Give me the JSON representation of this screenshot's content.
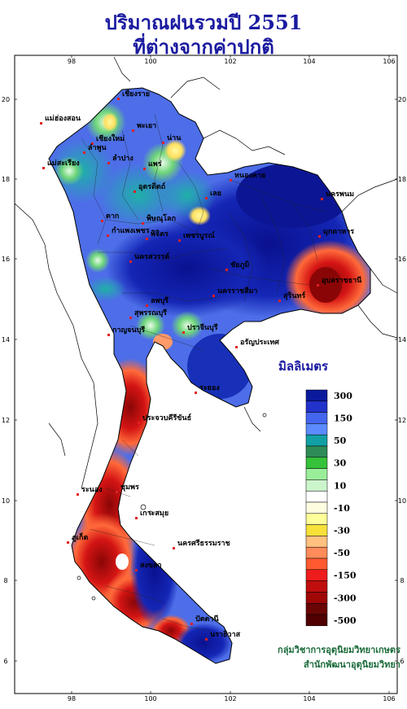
{
  "title": {
    "line1": "ปริมาณฝนรวมปี  2551",
    "line2": "ที่ต่างจากค่าปกติ"
  },
  "axes": {
    "top_ticks": [
      "98",
      "100",
      "102",
      "104",
      "106"
    ],
    "bottom_ticks": [
      "98",
      "100",
      "102",
      "104",
      "106"
    ],
    "left_ticks": [
      "20",
      "18",
      "16",
      "14",
      "12",
      "10",
      "8",
      "6"
    ],
    "right_ticks": [
      "20",
      "18",
      "16",
      "14",
      "12",
      "10",
      "8",
      "6"
    ]
  },
  "cities": [
    {
      "name": "เชียงราย"
    },
    {
      "name": "แม่ฮ่องสอน"
    },
    {
      "name": "พะเยา"
    },
    {
      "name": "เชียงใหม่"
    },
    {
      "name": "ลำพูน"
    },
    {
      "name": "น่าน"
    },
    {
      "name": "ลำปาง"
    },
    {
      "name": "แพร่"
    },
    {
      "name": "แม่สะเรียง"
    },
    {
      "name": "อุตรดิตถ์"
    },
    {
      "name": "หนองคาย"
    },
    {
      "name": "นครพนม"
    },
    {
      "name": "เลย"
    },
    {
      "name": "ตาก"
    },
    {
      "name": "พิษณุโลก"
    },
    {
      "name": "กำแพงเพชร"
    },
    {
      "name": "พิจิตร"
    },
    {
      "name": "เพชรบูรณ์"
    },
    {
      "name": "มุกดาหาร"
    },
    {
      "name": "นครสวรรค์"
    },
    {
      "name": "ชัยภูมิ"
    },
    {
      "name": "อุบลราชธานี"
    },
    {
      "name": "นครราชสีมา"
    },
    {
      "name": "สุรินทร์"
    },
    {
      "name": "ลพบุรี"
    },
    {
      "name": "สุพรรณบุรี"
    },
    {
      "name": "กาญจนบุรี"
    },
    {
      "name": "ปราจีนบุรี"
    },
    {
      "name": "อรัญประเทศ"
    },
    {
      "name": "ระยอง"
    },
    {
      "name": "ประจวบคีรีขันธ์"
    },
    {
      "name": "ชุมพร"
    },
    {
      "name": "ระนอง"
    },
    {
      "name": "เกาะสมุย"
    },
    {
      "name": "ภูเก็ต"
    },
    {
      "name": "นครศรีธรรมราช"
    },
    {
      "name": "สงขลา"
    },
    {
      "name": "ปัตตานี"
    },
    {
      "name": "นราธิวาส"
    }
  ],
  "legend": {
    "title": "มิลลิเมตร",
    "items": [
      {
        "color": "#0b1a9c",
        "label": "300"
      },
      {
        "color": "#2233cc",
        "label": ""
      },
      {
        "color": "#4466ee",
        "label": "150"
      },
      {
        "color": "#5b8bff",
        "label": ""
      },
      {
        "color": "#12a0a4",
        "label": "50"
      },
      {
        "color": "#2e8b57",
        "label": ""
      },
      {
        "color": "#35c23a",
        "label": "30"
      },
      {
        "color": "#9aee9a",
        "label": ""
      },
      {
        "color": "#ccf5cc",
        "label": "10"
      },
      {
        "color": "#ffffff",
        "label": ""
      },
      {
        "color": "#fffde0",
        "label": "-10"
      },
      {
        "color": "#ffff99",
        "label": ""
      },
      {
        "color": "#f7e13a",
        "label": "-30"
      },
      {
        "color": "#ffc080",
        "label": ""
      },
      {
        "color": "#ff8c5a",
        "label": "-50"
      },
      {
        "color": "#ff5a30",
        "label": ""
      },
      {
        "color": "#ee1c1c",
        "label": "-150"
      },
      {
        "color": "#c00e0e",
        "label": ""
      },
      {
        "color": "#a00808",
        "label": "-300"
      },
      {
        "color": "#6a0505",
        "label": ""
      },
      {
        "color": "#500000",
        "label": "-500"
      }
    ]
  },
  "credits": {
    "line1": "กลุ่มวิชาการอุตุนิยมวิทยาเกษตร",
    "line2": "สำนักพัฒนาอุตุนิยมวิทยา"
  }
}
